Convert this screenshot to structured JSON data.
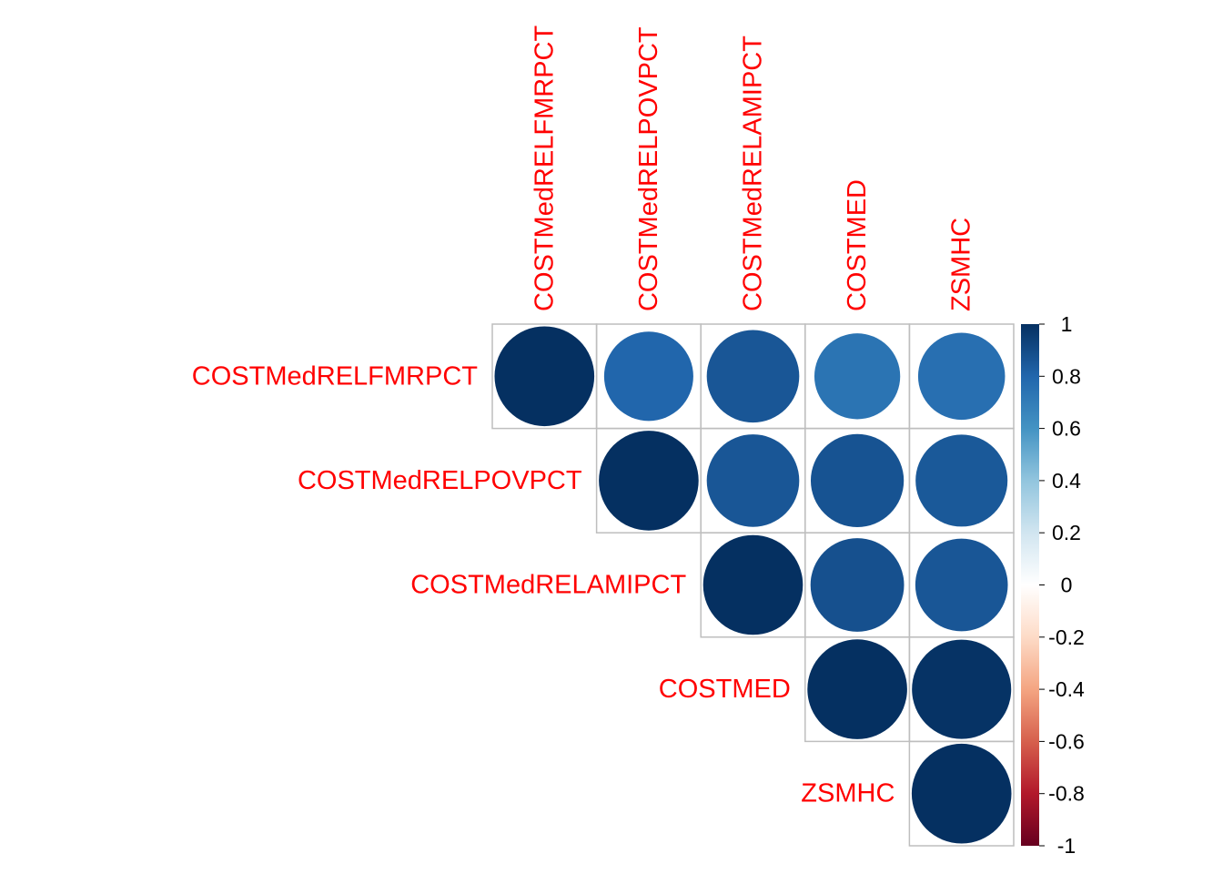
{
  "chart_data": {
    "type": "heatmap",
    "style": "corrplot-circle-upper",
    "variables": [
      "COSTMedRELFMRPCT",
      "COSTMedRELPOVPCT",
      "COSTMedRELAMIPCT",
      "COSTMED",
      "ZSMHC"
    ],
    "matrix": [
      [
        1.0,
        0.8,
        0.86,
        0.74,
        0.76
      ],
      [
        0.8,
        1.0,
        0.86,
        0.87,
        0.85
      ],
      [
        0.86,
        0.86,
        1.0,
        0.88,
        0.86
      ],
      [
        0.74,
        0.87,
        0.88,
        1.0,
        0.99
      ],
      [
        0.76,
        0.85,
        0.86,
        0.99,
        1.0
      ]
    ],
    "shown": "upper",
    "label_color": "#ff0000",
    "grid_color": "#bebebe",
    "colorbar": {
      "range": [
        -1,
        1
      ],
      "ticks": [
        "1",
        "0.8",
        "0.6",
        "0.4",
        "0.2",
        "0",
        "-0.2",
        "-0.4",
        "-0.6",
        "-0.8",
        "-1"
      ],
      "position": "right"
    },
    "colorscale": [
      "#67001f",
      "#b2182b",
      "#d6604d",
      "#f4a582",
      "#fddbc7",
      "#ffffff",
      "#d1e5f0",
      "#92c5de",
      "#4393c3",
      "#2166ac",
      "#053061"
    ]
  }
}
